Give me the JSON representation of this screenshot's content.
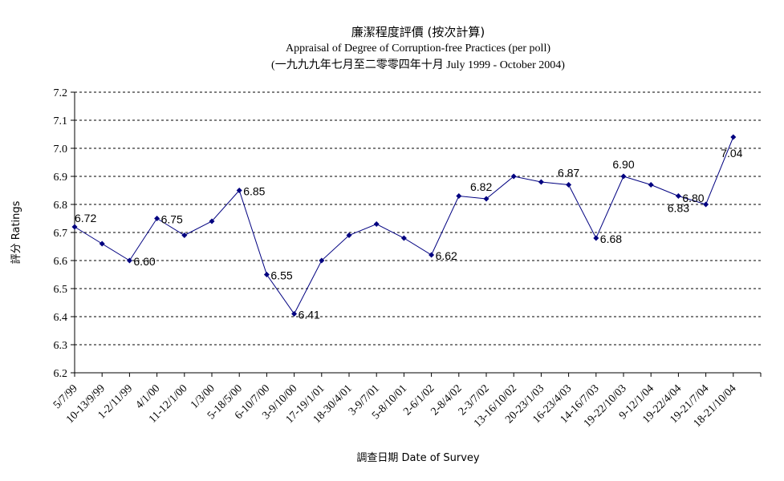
{
  "chart_data": {
    "type": "line",
    "title": "廉潔程度評價 (按次計算)",
    "subtitle": "Appraisal of Degree of Corruption-free Practices (per poll)",
    "period": "(一九九九年七月至二零零四年十月 July 1999 - October 2004)",
    "xlabel": "調查日期 Date of Survey",
    "ylabel": "評分 Ratings",
    "ylim": [
      6.2,
      7.2
    ],
    "yticks": [
      "7.2",
      "7.1",
      "7.0",
      "6.9",
      "6.8",
      "6.7",
      "6.6",
      "6.5",
      "6.4",
      "6.3",
      "6.2"
    ],
    "grid": true,
    "line_color": "#000080",
    "categories": [
      "5/7/99",
      "10-13/9/99",
      "1-2/11/99",
      "4/1/00",
      "11-12/1/00",
      "1/3/00",
      "5-18/5/00",
      "6-10/7/00",
      "3-9/10/00",
      "17-19/1/01",
      "18-30/4/01",
      "3-9/7/01",
      "5-8/10/01",
      "2-6/1/02",
      "2-8/4/02",
      "2-3/7/02",
      "13-16/10/02",
      "20-23/1/03",
      "16-23/4/03",
      "14-16/7/03",
      "19-22/10/03",
      "9-12/1/04",
      "19-22/4/04",
      "19-21/7/04",
      "18-21/10/04"
    ],
    "values": [
      6.72,
      6.66,
      6.6,
      6.75,
      6.69,
      6.74,
      6.85,
      6.55,
      6.41,
      6.6,
      6.69,
      6.73,
      6.68,
      6.62,
      6.83,
      6.82,
      6.9,
      6.88,
      6.87,
      6.68,
      6.9,
      6.87,
      6.83,
      6.8,
      7.04
    ],
    "data_labels": [
      {
        "index": 0,
        "text": "6.72"
      },
      {
        "index": 2,
        "text": "6.60"
      },
      {
        "index": 3,
        "text": "6.75"
      },
      {
        "index": 6,
        "text": "6.85"
      },
      {
        "index": 7,
        "text": "6.55"
      },
      {
        "index": 8,
        "text": "6.41"
      },
      {
        "index": 13,
        "text": "6.62"
      },
      {
        "index": 15,
        "text": "6.82"
      },
      {
        "index": 18,
        "text": "6.87"
      },
      {
        "index": 19,
        "text": "6.68"
      },
      {
        "index": 20,
        "text": "6.90"
      },
      {
        "index": 22,
        "text": "6.83"
      },
      {
        "index": 23,
        "text": "6.80"
      },
      {
        "index": 24,
        "text": "7.04"
      }
    ]
  }
}
